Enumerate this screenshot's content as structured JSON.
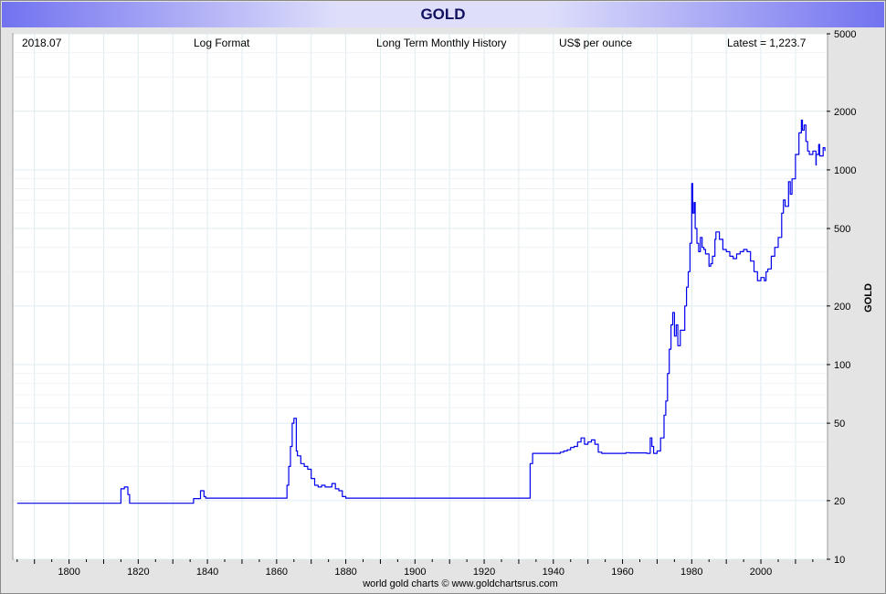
{
  "title": "GOLD",
  "header": {
    "date": "2018.07",
    "format": "Log Format",
    "history": "Long Term Monthly History",
    "units": "US$ per ounce",
    "latest": "Latest = 1,223.7"
  },
  "credit": "world gold charts © www.goldchartsrus.com",
  "colors": {
    "line": "#0000ee",
    "title_band": "#7272f0",
    "title_text": "#101060",
    "grid": "#e0ecf0"
  },
  "chart_data": {
    "type": "line",
    "title": "GOLD",
    "ylabel": "GOLD",
    "y_scale": "log",
    "ylim": [
      10,
      5000
    ],
    "xlim": [
      1784,
      2019
    ],
    "x_ticks": [
      "1800",
      "1820",
      "1840",
      "1860",
      "1880",
      "1900",
      "1920",
      "1940",
      "1960",
      "1980",
      "2000"
    ],
    "y_ticks": [
      "10",
      "20",
      "50",
      "100",
      "200",
      "500",
      "1000",
      "2000",
      "5000"
    ],
    "grid": true,
    "series": [
      {
        "name": "GOLD",
        "x": [
          1785,
          1814.5,
          1815,
          1816,
          1817,
          1817.5,
          1835,
          1836,
          1837.5,
          1838,
          1839,
          1839.5,
          1862.5,
          1863,
          1863.5,
          1864,
          1864.5,
          1865,
          1865.7,
          1866,
          1867,
          1868,
          1869,
          1870,
          1871,
          1872,
          1873,
          1874,
          1875,
          1876,
          1877,
          1878,
          1879,
          1880,
          1933,
          1933.3,
          1934,
          1940,
          1941,
          1942,
          1943,
          1944,
          1945,
          1946,
          1947,
          1948,
          1949,
          1950,
          1951,
          1952,
          1953,
          1954,
          1960,
          1961,
          1962,
          1967,
          1968,
          1968.5,
          1969,
          1970,
          1971,
          1972,
          1972.5,
          1973,
          1973.5,
          1974,
          1974.5,
          1975,
          1975.5,
          1976,
          1976.7,
          1977,
          1978,
          1978.5,
          1979,
          1979.5,
          1980,
          1980.3,
          1980.7,
          1981,
          1981.5,
          1982,
          1982.5,
          1983,
          1983.5,
          1984,
          1985,
          1985.5,
          1986,
          1986.7,
          1987,
          1988,
          1989,
          1990,
          1991,
          1992,
          1993,
          1994,
          1995,
          1996,
          1997,
          1998,
          1999,
          2000,
          2001,
          2001.5,
          2002,
          2003,
          2004,
          2005,
          2006,
          2006.5,
          2007,
          2008,
          2008.5,
          2009,
          2010,
          2011,
          2011.7,
          2012,
          2012.5,
          2013,
          2013.5,
          2014,
          2015,
          2015.9,
          2016,
          2016.7,
          2017,
          2018,
          2018.5
        ],
        "values": [
          19.4,
          19.4,
          23.0,
          23.5,
          21.5,
          19.4,
          19.4,
          20.5,
          20.5,
          22.5,
          21.0,
          20.6,
          20.6,
          24.0,
          30.0,
          38.0,
          50.0,
          53.0,
          36.0,
          34.0,
          31.0,
          30.0,
          29.0,
          26.0,
          24.0,
          23.5,
          24.0,
          23.5,
          23.5,
          24.5,
          23.0,
          22.5,
          21.0,
          20.6,
          20.6,
          31.0,
          35.0,
          35.0,
          35.0,
          35.5,
          36.0,
          36.5,
          37.5,
          38.0,
          40.0,
          42.0,
          39.0,
          40.0,
          41.0,
          39.0,
          35.5,
          35.0,
          35.0,
          35.3,
          35.2,
          35.0,
          42.0,
          38.0,
          35.0,
          36.0,
          42.0,
          55.0,
          65.0,
          90.0,
          120.0,
          160.0,
          185.0,
          140.0,
          160.0,
          125.0,
          150.0,
          150.0,
          200.0,
          250.0,
          300.0,
          420.0,
          850.0,
          600.0,
          680.0,
          500.0,
          420.0,
          380.0,
          450.0,
          400.0,
          390.0,
          370.0,
          320.0,
          330.0,
          360.0,
          440.0,
          480.0,
          440.0,
          390.0,
          380.0,
          360.0,
          350.0,
          370.0,
          380.0,
          390.0,
          380.0,
          340.0,
          300.0,
          270.0,
          280.0,
          270.0,
          300.0,
          310.0,
          360.0,
          400.0,
          450.0,
          600.0,
          700.0,
          650.0,
          870.0,
          750.0,
          900.0,
          1200.0,
          1550.0,
          1800.0,
          1600.0,
          1700.0,
          1400.0,
          1250.0,
          1200.0,
          1250.0,
          1060.0,
          1200.0,
          1350.0,
          1180.0,
          1300.0,
          1250.0
        ]
      }
    ]
  }
}
